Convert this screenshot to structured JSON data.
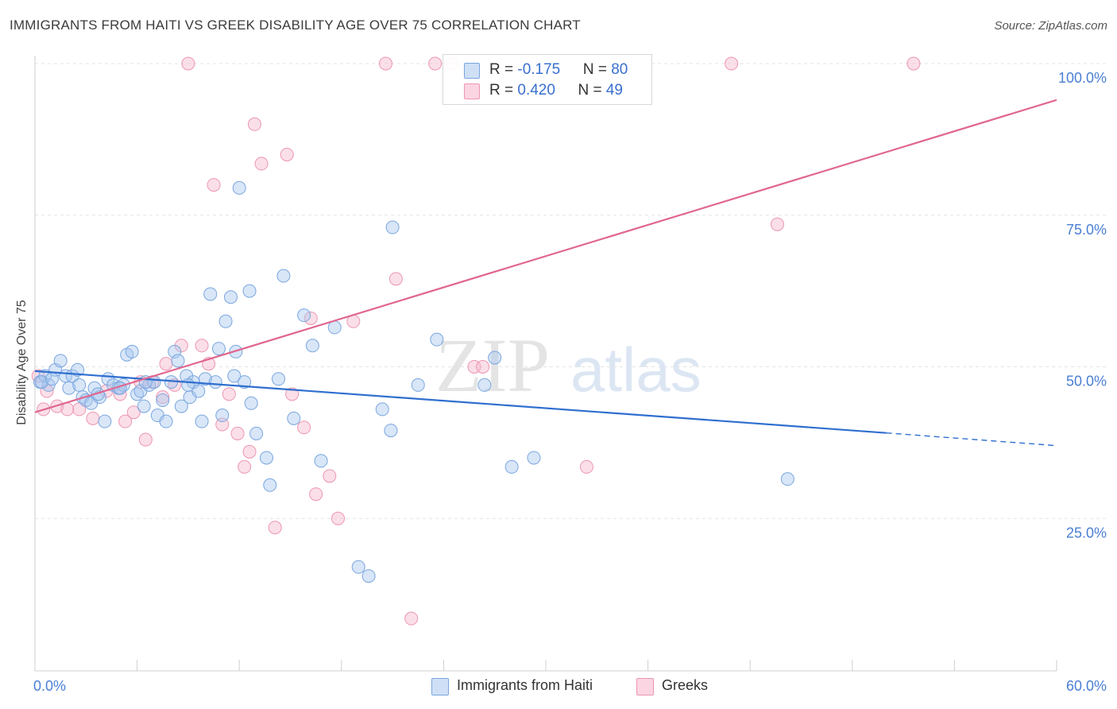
{
  "header": {
    "title": "IMMIGRANTS FROM HAITI VS GREEK DISABILITY AGE OVER 75 CORRELATION CHART",
    "source": "Source: ZipAtlas.com"
  },
  "watermark": {
    "zip": "ZIP",
    "atlas": "atlas"
  },
  "legend": {
    "rows": [
      {
        "r_label": "R = ",
        "r_value": "-0.175",
        "n_label": "N = ",
        "n_value": "80",
        "color": "#a9c8f0"
      },
      {
        "r_label": "R = ",
        "r_value": "0.420",
        "n_label": "N = ",
        "n_value": "49",
        "color": "#f6b8cb"
      }
    ]
  },
  "bottom_legend": {
    "series1": "Immigrants from Haiti",
    "series2": "Greeks"
  },
  "colors": {
    "blue_fill": "#a9c8f0",
    "blue_stroke": "#7aa6de",
    "blue_line": "#2f6fcf",
    "pink_fill": "#f6b8cb",
    "pink_stroke": "#ec96b1",
    "pink_line": "#e0678f",
    "tick_label": "#4a7fd4",
    "grid": "#e3e3e3"
  },
  "chart_data": {
    "type": "scatter",
    "title": "IMMIGRANTS FROM HAITI VS GREEK DISABILITY AGE OVER 75 CORRELATION CHART",
    "xlabel": "",
    "ylabel": "Disability Age Over 75",
    "xlim": [
      0,
      60
    ],
    "ylim": [
      0,
      105
    ],
    "x_tick_labels": [
      "0.0%",
      "60.0%"
    ],
    "y_tick_labels": [
      "25.0%",
      "50.0%",
      "75.0%",
      "100.0%"
    ],
    "y_ticks": [
      25,
      50,
      75,
      100
    ],
    "grid": true,
    "legend_position": "top-center",
    "series": [
      {
        "name": "Immigrants from Haiti",
        "color": "#a9c8f0",
        "trend": {
          "x": [
            0,
            50
          ],
          "y": [
            49.3,
            39.1
          ],
          "dashed_to": [
            60,
            37.0
          ]
        },
        "points": [
          [
            0.3,
            47.5
          ],
          [
            0.6,
            48.5
          ],
          [
            0.8,
            47.0
          ],
          [
            1.2,
            49.5
          ],
          [
            1.5,
            51.0
          ],
          [
            1.8,
            48.5
          ],
          [
            2.0,
            46.5
          ],
          [
            2.2,
            48.5
          ],
          [
            2.5,
            49.5
          ],
          [
            2.6,
            47.0
          ],
          [
            2.8,
            45.0
          ],
          [
            3.0,
            44.5
          ],
          [
            3.3,
            44.0
          ],
          [
            3.5,
            46.5
          ],
          [
            3.8,
            45.0
          ],
          [
            4.1,
            41.0
          ],
          [
            4.3,
            48.0
          ],
          [
            4.6,
            47.0
          ],
          [
            4.9,
            46.5
          ],
          [
            5.2,
            47.0
          ],
          [
            5.4,
            52.0
          ],
          [
            5.7,
            52.5
          ],
          [
            6.0,
            45.5
          ],
          [
            6.2,
            46.0
          ],
          [
            6.4,
            43.5
          ],
          [
            6.7,
            47.0
          ],
          [
            7.0,
            47.5
          ],
          [
            7.2,
            42.0
          ],
          [
            7.5,
            44.5
          ],
          [
            7.7,
            41.0
          ],
          [
            8.0,
            47.5
          ],
          [
            8.2,
            52.5
          ],
          [
            8.4,
            51.0
          ],
          [
            8.6,
            43.5
          ],
          [
            8.9,
            48.5
          ],
          [
            9.1,
            45.0
          ],
          [
            9.3,
            47.5
          ],
          [
            9.6,
            46.0
          ],
          [
            9.8,
            41.0
          ],
          [
            10.0,
            48.0
          ],
          [
            10.3,
            62.0
          ],
          [
            10.6,
            47.5
          ],
          [
            10.8,
            53.0
          ],
          [
            11.0,
            42.0
          ],
          [
            11.2,
            57.5
          ],
          [
            11.5,
            61.5
          ],
          [
            11.7,
            48.5
          ],
          [
            11.8,
            52.5
          ],
          [
            12.0,
            79.5
          ],
          [
            12.6,
            62.5
          ],
          [
            12.7,
            44.0
          ],
          [
            13.0,
            39.0
          ],
          [
            13.6,
            35.0
          ],
          [
            13.8,
            30.5
          ],
          [
            14.3,
            48.0
          ],
          [
            14.6,
            65.0
          ],
          [
            15.2,
            41.5
          ],
          [
            15.8,
            58.5
          ],
          [
            16.3,
            53.5
          ],
          [
            16.8,
            34.5
          ],
          [
            17.6,
            56.5
          ],
          [
            19.0,
            17.0
          ],
          [
            19.6,
            15.5
          ],
          [
            20.4,
            43.0
          ],
          [
            20.9,
            39.5
          ],
          [
            21.0,
            73.0
          ],
          [
            22.5,
            47.0
          ],
          [
            23.6,
            54.5
          ],
          [
            26.4,
            47.0
          ],
          [
            27.0,
            51.5
          ],
          [
            28.0,
            33.5
          ],
          [
            29.3,
            35.0
          ],
          [
            44.2,
            31.5
          ],
          [
            0.4,
            47.5
          ],
          [
            1.0,
            48.0
          ],
          [
            3.7,
            45.5
          ],
          [
            5.0,
            46.5
          ],
          [
            6.5,
            47.5
          ],
          [
            9.0,
            47.0
          ],
          [
            12.3,
            47.5
          ]
        ]
      },
      {
        "name": "Greeks",
        "color": "#f6b8cb",
        "trend": {
          "x": [
            0,
            60
          ],
          "y": [
            42.5,
            94.0
          ]
        },
        "points": [
          [
            0.2,
            48.5
          ],
          [
            0.7,
            46.0
          ],
          [
            1.3,
            43.5
          ],
          [
            1.9,
            43.0
          ],
          [
            2.6,
            43.0
          ],
          [
            3.4,
            41.5
          ],
          [
            4.2,
            46.0
          ],
          [
            5.0,
            45.5
          ],
          [
            5.3,
            41.0
          ],
          [
            5.8,
            42.5
          ],
          [
            6.2,
            47.5
          ],
          [
            6.5,
            38.0
          ],
          [
            6.9,
            47.5
          ],
          [
            7.5,
            45.0
          ],
          [
            7.7,
            50.5
          ],
          [
            8.2,
            47.0
          ],
          [
            8.6,
            53.5
          ],
          [
            9.0,
            100
          ],
          [
            9.8,
            53.5
          ],
          [
            10.2,
            50.5
          ],
          [
            10.5,
            80.0
          ],
          [
            11.0,
            40.5
          ],
          [
            11.4,
            45.5
          ],
          [
            11.9,
            39.0
          ],
          [
            12.3,
            33.5
          ],
          [
            12.6,
            36.0
          ],
          [
            12.9,
            90.0
          ],
          [
            13.3,
            83.5
          ],
          [
            14.1,
            23.5
          ],
          [
            14.8,
            85.0
          ],
          [
            15.1,
            45.5
          ],
          [
            15.8,
            40.0
          ],
          [
            16.2,
            58.0
          ],
          [
            16.5,
            29.0
          ],
          [
            17.3,
            32.0
          ],
          [
            17.8,
            25.0
          ],
          [
            18.7,
            57.5
          ],
          [
            20.6,
            100
          ],
          [
            21.2,
            64.5
          ],
          [
            22.1,
            8.5
          ],
          [
            23.5,
            100
          ],
          [
            24.5,
            100
          ],
          [
            25.8,
            50.0
          ],
          [
            26.3,
            50.0
          ],
          [
            32.4,
            33.5
          ],
          [
            40.9,
            100
          ],
          [
            43.6,
            73.5
          ],
          [
            51.6,
            100
          ],
          [
            0.5,
            43.0
          ]
        ]
      }
    ]
  }
}
